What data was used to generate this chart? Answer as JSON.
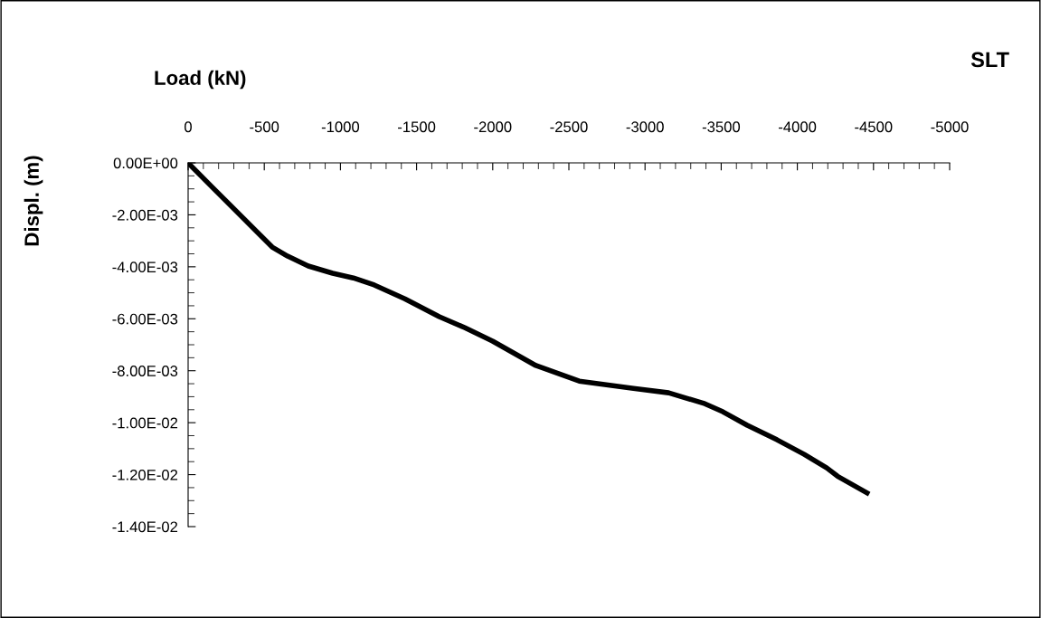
{
  "chart_data": {
    "type": "line",
    "title": "SLT",
    "xlabel": "Load (kN)",
    "ylabel": "Displ. (m)",
    "x": [
      0,
      -154,
      -552,
      -653,
      -789,
      -949,
      -1085,
      -1222,
      -1423,
      -1649,
      -1815,
      -1999,
      -2283,
      -2568,
      -2924,
      -3155,
      -3393,
      -3511,
      -3671,
      -3867,
      -4045,
      -4193,
      -4264,
      -4472
    ],
    "series": [
      {
        "color": "#000000",
        "values": [
          0,
          -0.00091,
          -0.00324,
          -0.00359,
          -0.00397,
          -0.00425,
          -0.00443,
          -0.0047,
          -0.00523,
          -0.00592,
          -0.00634,
          -0.00686,
          -0.0078,
          -0.0084,
          -0.00868,
          -0.00885,
          -0.00927,
          -0.00958,
          -0.0101,
          -0.01066,
          -0.01122,
          -0.01174,
          -0.01206,
          -0.01275
        ]
      }
    ],
    "xlim": [
      0,
      -5000
    ],
    "xticks": [
      0,
      -500,
      -1000,
      -1500,
      -2000,
      -2500,
      -3000,
      -3500,
      -4000,
      -4500,
      -5000
    ],
    "ylim": [
      -0.014,
      0
    ],
    "yticks": [
      {
        "value": 0,
        "label": "0.00E+00"
      },
      {
        "value": -0.002,
        "label": "-2.00E-03"
      },
      {
        "value": -0.004,
        "label": "-4.00E-03"
      },
      {
        "value": -0.006,
        "label": "-6.00E-03"
      },
      {
        "value": -0.008,
        "label": "-8.00E-03"
      },
      {
        "value": -0.01,
        "label": "-1.00E-02"
      },
      {
        "value": -0.012,
        "label": "-1.20E-02"
      },
      {
        "value": -0.014,
        "label": "-1.40E-02"
      }
    ],
    "grid": false,
    "legend": false,
    "marker": "none",
    "line_style": "solid"
  }
}
